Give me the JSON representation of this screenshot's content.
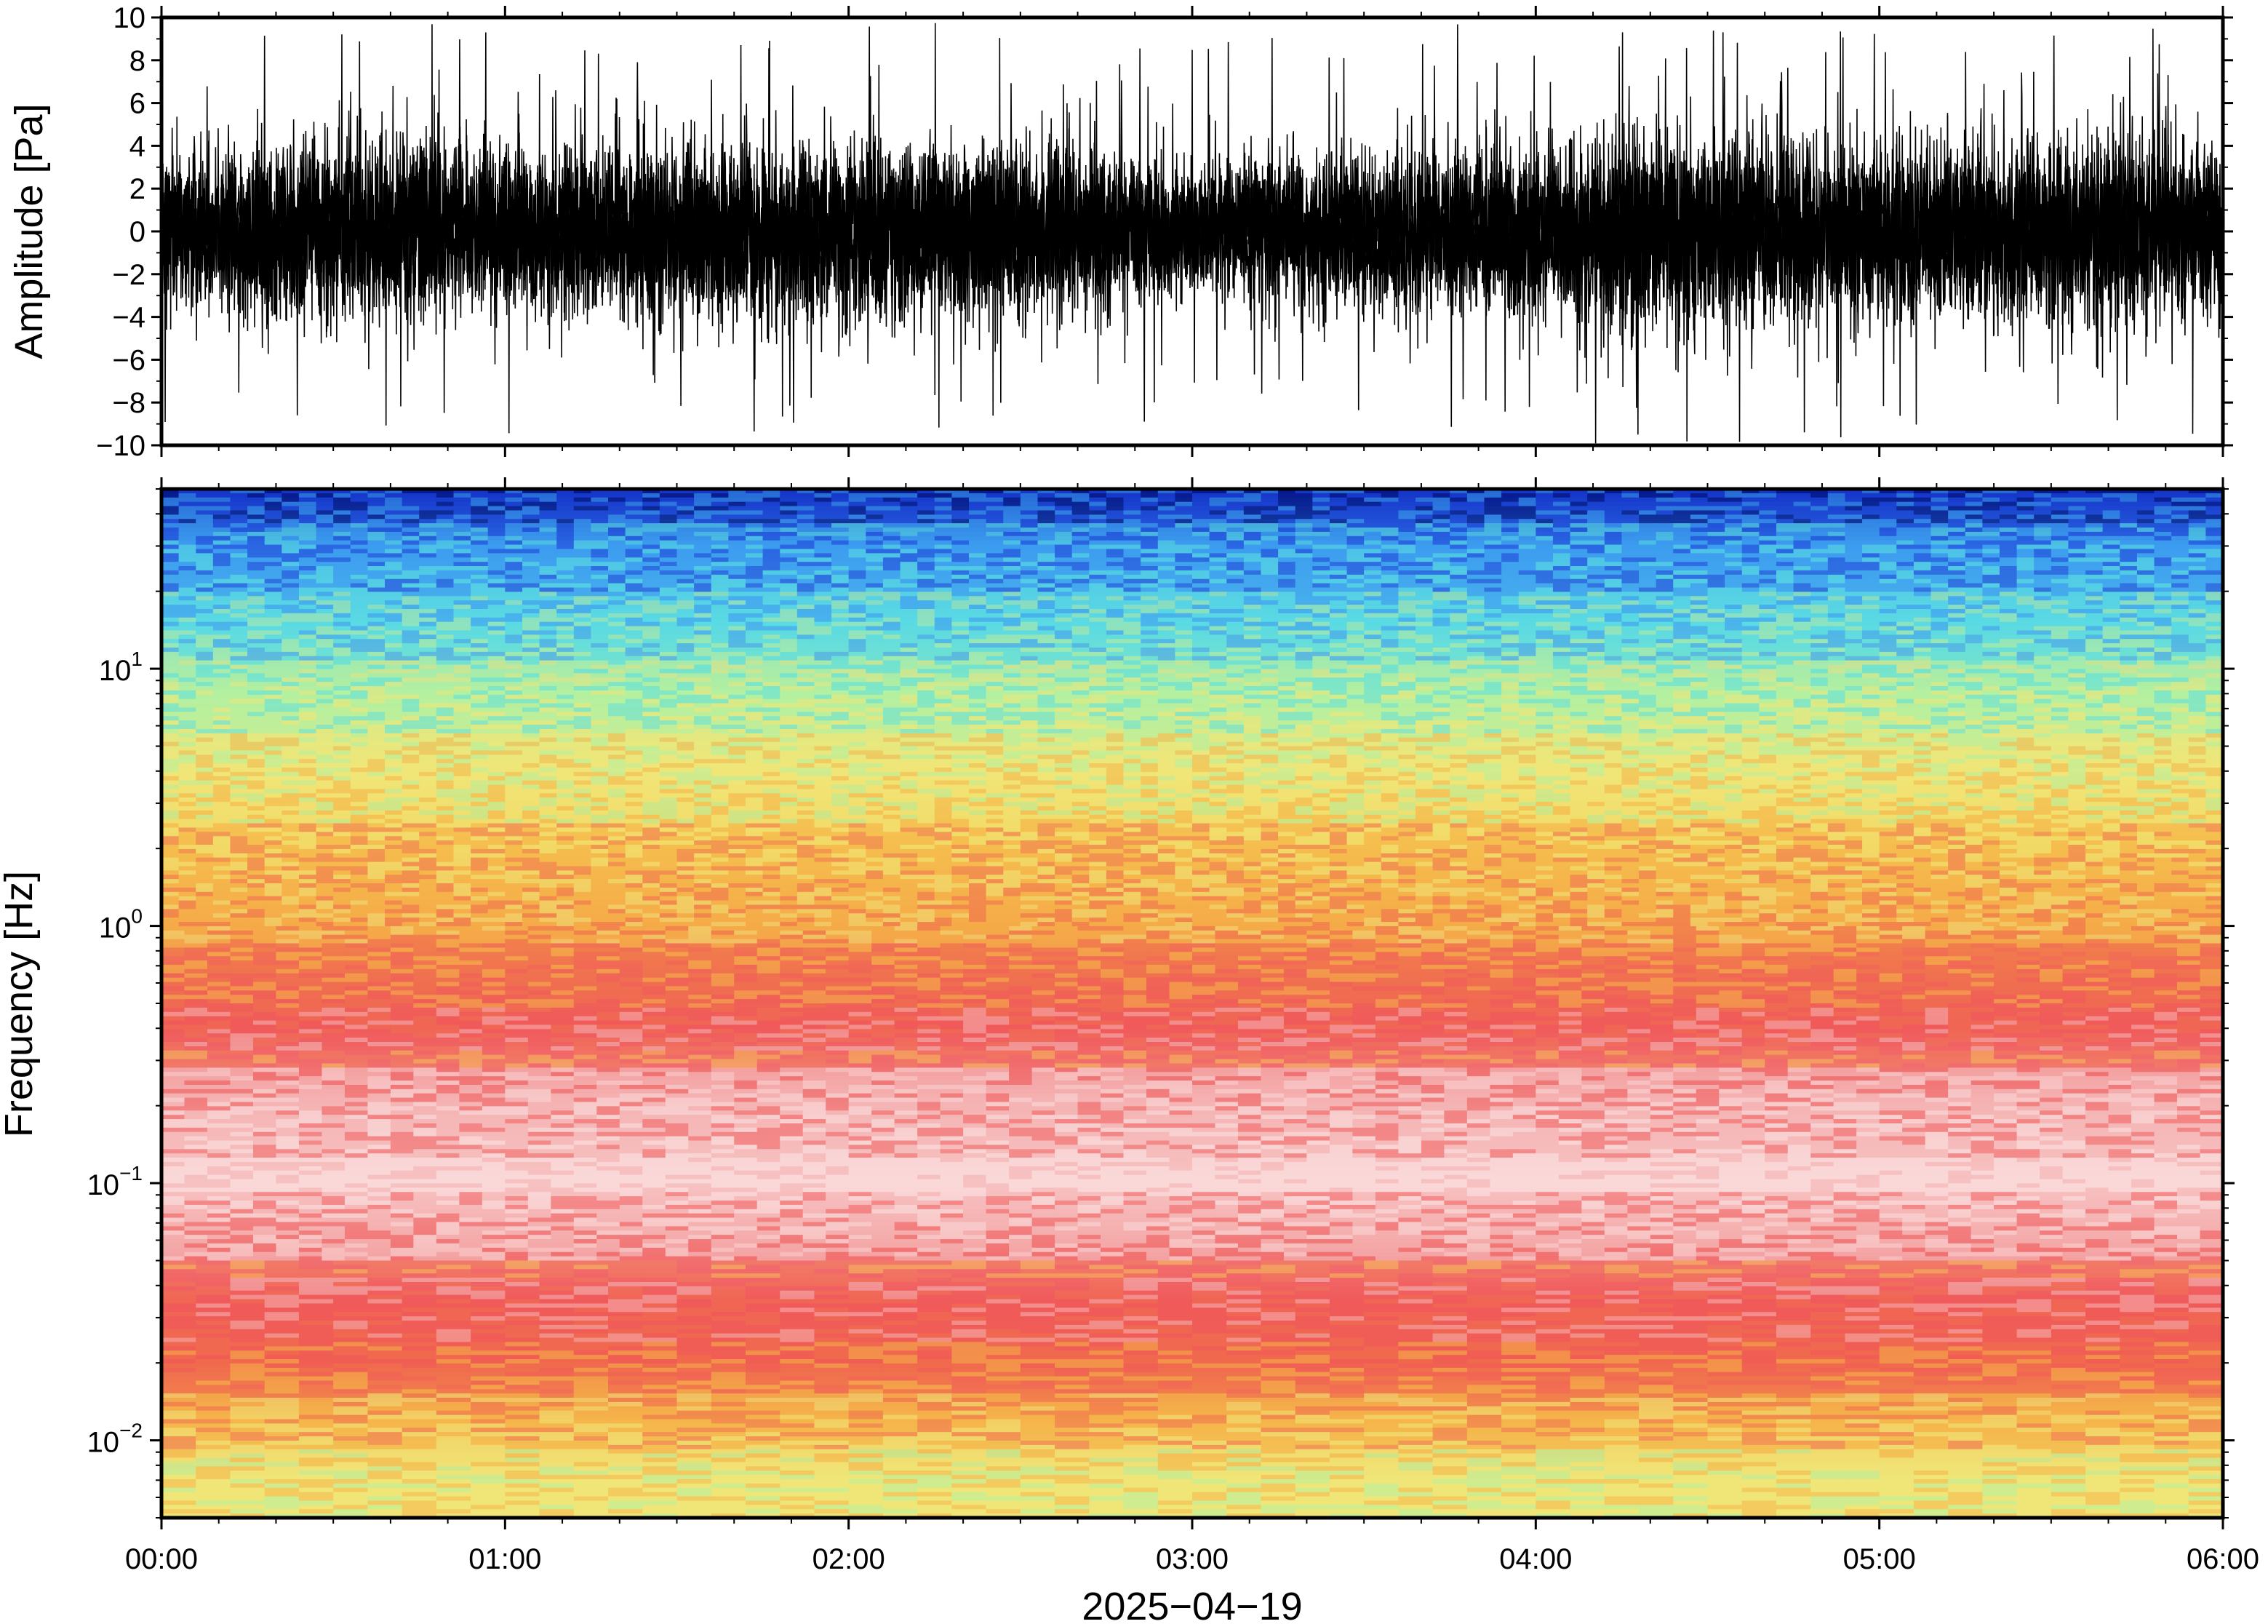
{
  "chart_data": [
    {
      "type": "line",
      "panel": "waveform",
      "ylabel": "Amplitude [Pa]",
      "ylim": [
        -10,
        10
      ],
      "yticks": [
        -10,
        -8,
        -6,
        -4,
        -2,
        0,
        2,
        4,
        6,
        8,
        10
      ],
      "ytick_labels": [
        "−10",
        "−8",
        "−6",
        "−4",
        "−2",
        "0",
        "2",
        "4",
        "6",
        "8",
        "10"
      ],
      "x_range": [
        "00:00",
        "06:00"
      ],
      "series": [
        {
          "color": "#000000",
          "envelope_by_hour": {
            "x": [
              "00:00",
              "00:30",
              "01:00",
              "01:30",
              "02:00",
              "02:30",
              "03:00",
              "03:30",
              "04:00",
              "04:30",
              "05:00",
              "05:30",
              "06:00"
            ],
            "typical_abs_max": [
              4.5,
              5.5,
              5.0,
              5.0,
              5.5,
              5.0,
              4.0,
              4.5,
              5.0,
              6.0,
              5.0,
              5.5,
              5.0
            ],
            "peak_abs": [
              9,
              10,
              9.5,
              9,
              10,
              9.5,
              9,
              9.5,
              10,
              10,
              10,
              9.5,
              10
            ]
          }
        }
      ]
    },
    {
      "type": "heatmap",
      "panel": "spectrogram",
      "ylabel": "Frequency [Hz]",
      "yscale": "log",
      "ylim": [
        0.005,
        50
      ],
      "ytick_labels": [
        {
          "value": 0.01,
          "base": "10",
          "exp": "−2"
        },
        {
          "value": 0.1,
          "base": "10",
          "exp": "−1"
        },
        {
          "value": 1,
          "base": "10",
          "exp": "0"
        },
        {
          "value": 10,
          "base": "10",
          "exp": "1"
        }
      ],
      "xlabel": "2025−04−19",
      "xticks": [
        "00:00",
        "01:00",
        "02:00",
        "03:00",
        "04:00",
        "05:00",
        "06:00"
      ],
      "colormap": [
        "#000a6e",
        "#1c3cd8",
        "#3c9cf0",
        "#5ae0e0",
        "#b4f0a0",
        "#f0e678",
        "#f5b44a",
        "#f06e50",
        "#f05a5a",
        "#f5b4b4",
        "#fadede"
      ],
      "band_profile": {
        "frequency_hz": [
          50,
          30,
          15,
          8,
          4,
          2,
          1,
          0.6,
          0.4,
          0.2,
          0.1,
          0.06,
          0.035,
          0.02,
          0.012,
          0.007
        ],
        "dominant_color": [
          "#0a28b4",
          "#3c9cf0",
          "#5ad2e6",
          "#b4f0a0",
          "#f0e678",
          "#f5c850",
          "#f5a046",
          "#f06e50",
          "#f05a5a",
          "#f5b4b4",
          "#fad2d2",
          "#f5a0a0",
          "#f05a5a",
          "#f0644a",
          "#f5b44a",
          "#f0e678"
        ]
      }
    }
  ]
}
